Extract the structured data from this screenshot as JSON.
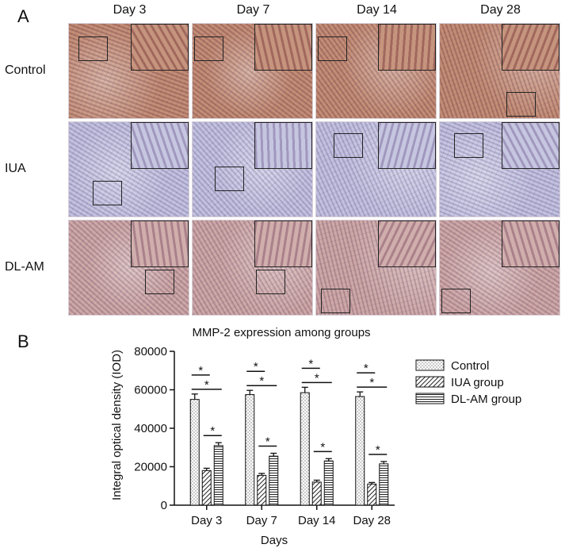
{
  "panel_a": {
    "letter": "A",
    "columns": [
      "Day 3",
      "Day 7",
      "Day 14",
      "Day 28"
    ],
    "rows": [
      "Control",
      "IUA",
      "DL-AM"
    ]
  },
  "panel_b": {
    "letter": "B"
  },
  "colors": {
    "control_tissue": "#b87a5e",
    "iua_tissue": "#b8b8da",
    "dlam_tissue": "#c49a98"
  },
  "chart_data": {
    "type": "bar",
    "title": "MMP-2 expression among groups",
    "xlabel": "Days",
    "ylabel": "Integral optical density (IOD)",
    "categories": [
      "Day 3",
      "Day 7",
      "Day 14",
      "Day 28"
    ],
    "ylim": [
      0,
      80000
    ],
    "yticks": [
      "0",
      "20000",
      "40000",
      "60000",
      "80000"
    ],
    "legend_position": "right",
    "series": [
      {
        "name": "Control",
        "pattern": "dots",
        "values": [
          55000,
          57500,
          58500,
          56500
        ],
        "errors": [
          2800,
          2200,
          2800,
          2400
        ]
      },
      {
        "name": "IUA group",
        "pattern": "diagonal",
        "values": [
          18000,
          15500,
          12000,
          11000
        ],
        "errors": [
          1200,
          1000,
          1000,
          800
        ]
      },
      {
        "name": "DL-AM group",
        "pattern": "horizontal",
        "values": [
          31000,
          25500,
          23000,
          21500
        ],
        "errors": [
          1500,
          1500,
          1200,
          1200
        ]
      }
    ],
    "significance": [
      {
        "from": 0,
        "to": 1,
        "label": "*"
      },
      {
        "from": 0,
        "to": 2,
        "label": "*"
      },
      {
        "from": 1,
        "to": 2,
        "label": "*"
      }
    ]
  }
}
